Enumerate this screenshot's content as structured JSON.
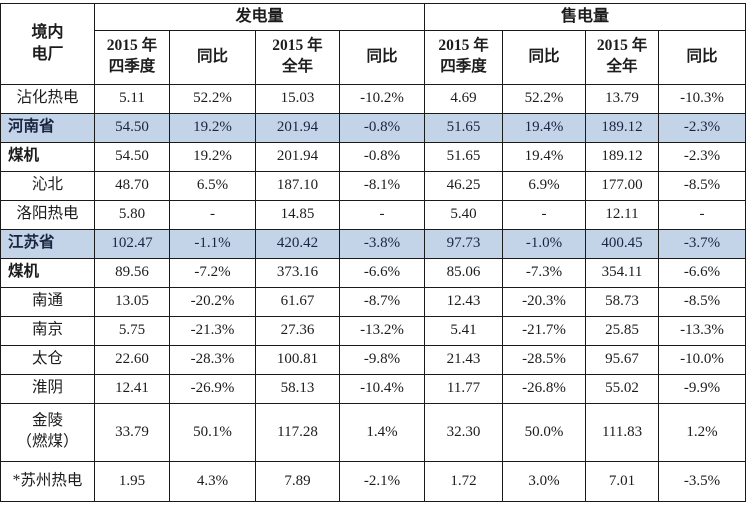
{
  "colors": {
    "highlight_row_bg": "#c3d4e8",
    "border": "#1a1a1a",
    "text": "#1c1c1c",
    "page_bg": "#ffffff"
  },
  "table": {
    "corner_label": "境内\n电厂",
    "groups": [
      {
        "label": "发电量",
        "sub_headers": [
          "2015 年\n四季度",
          "同比",
          "2015 年\n全年",
          "同比"
        ]
      },
      {
        "label": "售电量",
        "sub_headers": [
          "2015 年\n四季度",
          "同比",
          "2015 年\n全年",
          "同比"
        ]
      }
    ],
    "rows": [
      {
        "label": "沾化热电",
        "style": "plant",
        "highlight": false,
        "values": [
          "5.11",
          "52.2%",
          "15.03",
          "-10.2%",
          "4.69",
          "52.2%",
          "13.79",
          "-10.3%"
        ]
      },
      {
        "label": "河南省",
        "style": "group",
        "highlight": true,
        "values": [
          "54.50",
          "19.2%",
          "201.94",
          "-0.8%",
          "51.65",
          "19.4%",
          "189.12",
          "-2.3%"
        ]
      },
      {
        "label": "煤机",
        "style": "subtotal",
        "highlight": false,
        "values": [
          "54.50",
          "19.2%",
          "201.94",
          "-0.8%",
          "51.65",
          "19.4%",
          "189.12",
          "-2.3%"
        ]
      },
      {
        "label": "沁北",
        "style": "plant",
        "highlight": false,
        "values": [
          "48.70",
          "6.5%",
          "187.10",
          "-8.1%",
          "46.25",
          "6.9%",
          "177.00",
          "-8.5%"
        ]
      },
      {
        "label": "洛阳热电",
        "style": "plant",
        "highlight": false,
        "values": [
          "5.80",
          "-",
          "14.85",
          "-",
          "5.40",
          "-",
          "12.11",
          "-"
        ]
      },
      {
        "label": "江苏省",
        "style": "group",
        "highlight": true,
        "values": [
          "102.47",
          "-1.1%",
          "420.42",
          "-3.8%",
          "97.73",
          "-1.0%",
          "400.45",
          "-3.7%"
        ]
      },
      {
        "label": "煤机",
        "style": "subtotal",
        "highlight": false,
        "values": [
          "89.56",
          "-7.2%",
          "373.16",
          "-6.6%",
          "85.06",
          "-7.3%",
          "354.11",
          "-6.6%"
        ]
      },
      {
        "label": "南通",
        "style": "plant",
        "highlight": false,
        "values": [
          "13.05",
          "-20.2%",
          "61.67",
          "-8.7%",
          "12.43",
          "-20.3%",
          "58.73",
          "-8.5%"
        ]
      },
      {
        "label": "南京",
        "style": "plant",
        "highlight": false,
        "values": [
          "5.75",
          "-21.3%",
          "27.36",
          "-13.2%",
          "5.41",
          "-21.7%",
          "25.85",
          "-13.3%"
        ]
      },
      {
        "label": "太仓",
        "style": "plant",
        "highlight": false,
        "values": [
          "22.60",
          "-28.3%",
          "100.81",
          "-9.8%",
          "21.43",
          "-28.5%",
          "95.67",
          "-10.0%"
        ]
      },
      {
        "label": "淮阴",
        "style": "plant",
        "highlight": false,
        "values": [
          "12.41",
          "-26.9%",
          "58.13",
          "-10.4%",
          "11.77",
          "-26.8%",
          "55.02",
          "-9.9%"
        ]
      },
      {
        "label": "金陵\n（燃煤）",
        "style": "plant",
        "highlight": false,
        "values": [
          "33.79",
          "50.1%",
          "117.28",
          "1.4%",
          "32.30",
          "50.0%",
          "111.83",
          "1.2%"
        ]
      },
      {
        "label": "*苏州热电",
        "style": "plant",
        "highlight": false,
        "values": [
          "1.95",
          "4.3%",
          "7.89",
          "-2.1%",
          "1.72",
          "3.0%",
          "7.01",
          "-3.5%"
        ]
      }
    ]
  }
}
